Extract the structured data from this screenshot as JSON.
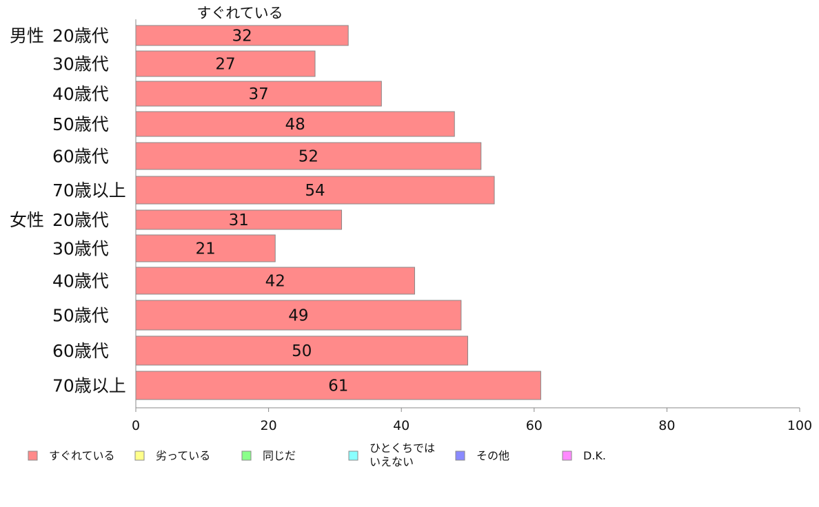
{
  "chart_data": {
    "type": "bar",
    "orientation": "horizontal",
    "title": "すぐれている",
    "groups": [
      {
        "label": "男性",
        "start_index": 0
      },
      {
        "label": "女性",
        "start_index": 6
      }
    ],
    "categories": [
      "20歳代",
      "30歳代",
      "40歳代",
      "50歳代",
      "60歳代",
      "70歳以上",
      "20歳代",
      "30歳代",
      "40歳代",
      "50歳代",
      "60歳代",
      "70歳以上"
    ],
    "series": [
      {
        "name": "すぐれている",
        "color": "#ff8a8a",
        "values": [
          32,
          27,
          37,
          48,
          52,
          54,
          31,
          21,
          42,
          49,
          50,
          61
        ]
      }
    ],
    "xlim": [
      0,
      100
    ],
    "xticks": [
      0,
      20,
      40,
      60,
      80,
      100
    ],
    "grid": false,
    "legend": {
      "position": "bottom",
      "items": [
        {
          "label": "すぐれている",
          "color": "#ff8a8a"
        },
        {
          "label": "劣っている",
          "color": "#ffff8a"
        },
        {
          "label": "同じだ",
          "color": "#8aff8a"
        },
        {
          "label": "ひとくちでは\nいえない",
          "color": "#8affff"
        },
        {
          "label": "その他",
          "color": "#8a8aff"
        },
        {
          "label": "D.K.",
          "color": "#ff8aff"
        }
      ]
    }
  }
}
